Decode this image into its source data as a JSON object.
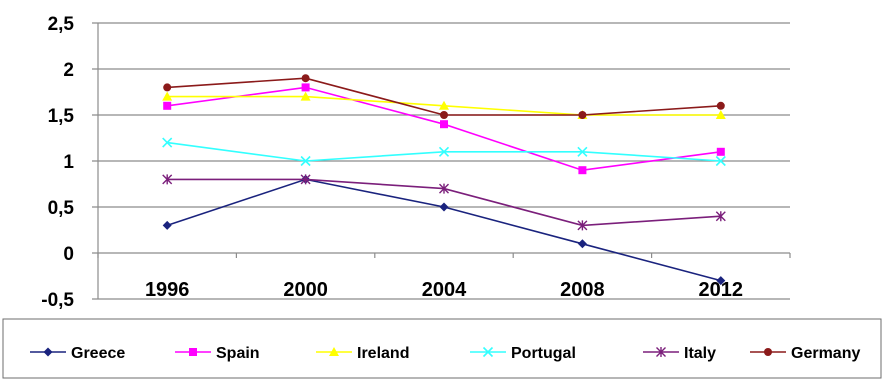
{
  "chart_data": {
    "type": "line",
    "title": "",
    "xlabel": "",
    "ylabel": "",
    "x": [
      "1996",
      "2000",
      "2004",
      "2008",
      "2012"
    ],
    "ylim": [
      -0.5,
      2.5
    ],
    "y_ticks": [
      "-0,5",
      "0",
      "0,5",
      "1",
      "1,5",
      "2",
      "2,5"
    ],
    "grid": true,
    "legend_position": "bottom",
    "series": [
      {
        "name": "Greece",
        "color": "#1a237e",
        "marker": "diamond",
        "values": [
          0.3,
          0.8,
          0.5,
          0.1,
          -0.3
        ]
      },
      {
        "name": "Spain",
        "color": "#ff00ff",
        "marker": "square",
        "values": [
          1.6,
          1.8,
          1.4,
          0.9,
          1.1
        ]
      },
      {
        "name": "Ireland",
        "color": "#ffff00",
        "marker": "triangle",
        "values": [
          1.7,
          1.7,
          1.6,
          1.5,
          1.5
        ]
      },
      {
        "name": "Portugal",
        "color": "#33ffff",
        "marker": "x",
        "values": [
          1.2,
          1.0,
          1.1,
          1.1,
          1.0
        ]
      },
      {
        "name": "Italy",
        "color": "#7b1f7b",
        "marker": "star",
        "values": [
          0.8,
          0.8,
          0.7,
          0.3,
          0.4
        ]
      },
      {
        "name": "Germany",
        "color": "#8b1a1a",
        "marker": "circle",
        "values": [
          1.8,
          1.9,
          1.5,
          1.5,
          1.6
        ]
      }
    ]
  }
}
